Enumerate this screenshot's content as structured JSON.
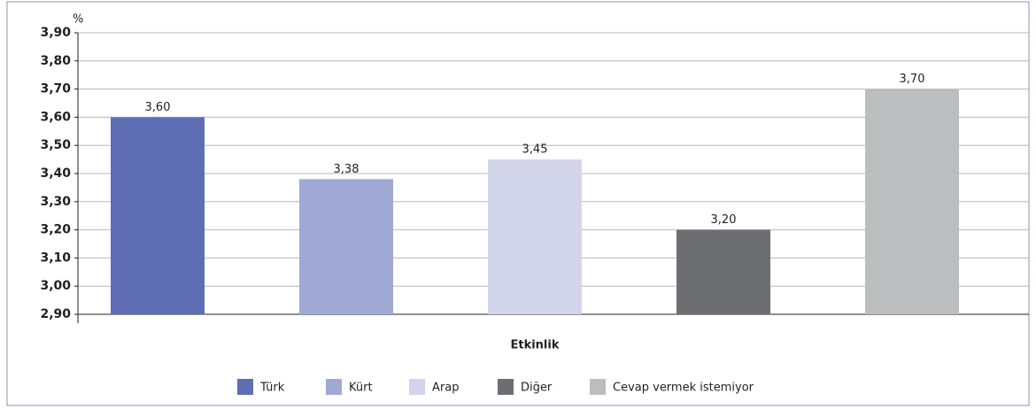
{
  "chart_data": {
    "type": "bar",
    "y_axis_label": "%",
    "categories": [
      "Etkinlik"
    ],
    "series": [
      {
        "name": "Türk",
        "color": "#5f6db4",
        "values": [
          3.6
        ],
        "value_labels": [
          "3,60"
        ]
      },
      {
        "name": "Kürt",
        "color": "#a0a8d4",
        "values": [
          3.38
        ],
        "value_labels": [
          "3,38"
        ]
      },
      {
        "name": "Arap",
        "color": "#d2d5ea",
        "values": [
          3.45
        ],
        "value_labels": [
          "3,45"
        ]
      },
      {
        "name": "Diğer",
        "color": "#6d6e71",
        "values": [
          3.2
        ],
        "value_labels": [
          "3,20"
        ]
      },
      {
        "name": "Cevap vermek istemiyor",
        "color": "#bcbdbf",
        "values": [
          3.7
        ],
        "value_labels": [
          "3,70"
        ]
      }
    ],
    "ylim": [
      2.9,
      3.9
    ],
    "yticks": [
      {
        "value": 2.9,
        "label": "2,90"
      },
      {
        "value": 3.0,
        "label": "3,00"
      },
      {
        "value": 3.1,
        "label": "3,10"
      },
      {
        "value": 3.2,
        "label": "3,20"
      },
      {
        "value": 3.3,
        "label": "3,30"
      },
      {
        "value": 3.4,
        "label": "3,40"
      },
      {
        "value": 3.5,
        "label": "3,50"
      },
      {
        "value": 3.6,
        "label": "3,60"
      },
      {
        "value": 3.7,
        "label": "3,70"
      },
      {
        "value": 3.8,
        "label": "3,80"
      },
      {
        "value": 3.9,
        "label": "3,90"
      }
    ],
    "grid": true,
    "legend": "bottom"
  }
}
